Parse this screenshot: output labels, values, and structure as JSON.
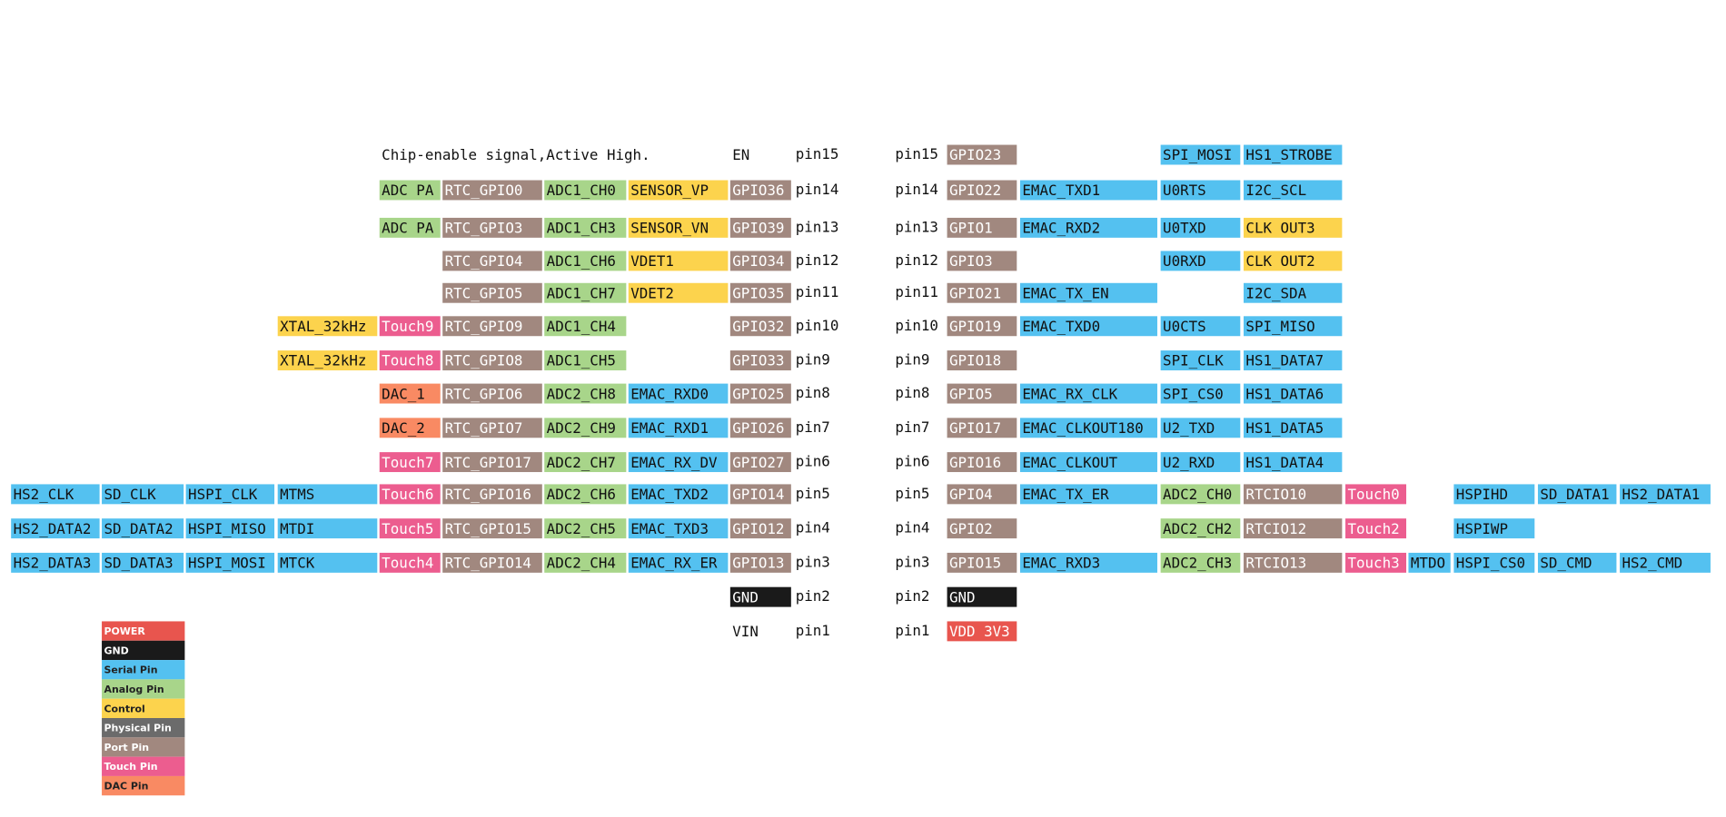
{
  "left": {
    "rows": [
      {
        "pin": "pin15",
        "cells": [
          null,
          null,
          null,
          null,
          {
            "text": "Chip-enable signal,Active High."
          },
          null,
          null,
          null,
          {
            "text": "EN"
          }
        ]
      },
      {
        "pin": "pin14",
        "cells": [
          null,
          null,
          null,
          null,
          {
            "text": "ADC PA",
            "color": "#a8d58a"
          },
          {
            "text": "RTC_GPIO0",
            "color": "#a1887f"
          },
          {
            "text": "ADC1_CH0",
            "color": "#a8d58a"
          },
          {
            "text": "SENSOR_VP",
            "color": "#fcd34d"
          },
          {
            "text": "GPIO36",
            "color": "#a1887f"
          }
        ]
      },
      {
        "pin": "pin13",
        "cells": [
          null,
          null,
          null,
          null,
          {
            "text": "ADC PA",
            "color": "#a8d58a"
          },
          {
            "text": "RTC_GPIO3",
            "color": "#a1887f"
          },
          {
            "text": "ADC1_CH3",
            "color": "#a8d58a"
          },
          {
            "text": "SENSOR_VN",
            "color": "#fcd34d"
          },
          {
            "text": "GPIO39",
            "color": "#a1887f"
          }
        ]
      },
      {
        "pin": "pin12",
        "cells": [
          null,
          null,
          null,
          null,
          null,
          {
            "text": "RTC_GPIO4",
            "color": "#a1887f"
          },
          {
            "text": "ADC1_CH6",
            "color": "#a8d58a"
          },
          {
            "text": "VDET1",
            "color": "#fcd34d"
          },
          {
            "text": "GPIO34",
            "color": "#a1887f"
          }
        ]
      },
      {
        "pin": "pin11",
        "cells": [
          null,
          null,
          null,
          null,
          null,
          {
            "text": "RTC_GPIO5",
            "color": "#a1887f"
          },
          {
            "text": "ADC1_CH7",
            "color": "#a8d58a"
          },
          {
            "text": "VDET2",
            "color": "#fcd34d"
          },
          {
            "text": "GPIO35",
            "color": "#a1887f"
          }
        ]
      },
      {
        "pin": "pin10",
        "cells": [
          null,
          null,
          null,
          {
            "text": "XTAL_32kHz",
            "color": "#fcd34d"
          },
          {
            "text": "Touch9",
            "color": "#ec5d8f"
          },
          {
            "text": "RTC_GPIO9",
            "color": "#a1887f"
          },
          {
            "text": "ADC1_CH4",
            "color": "#a8d58a"
          },
          null,
          {
            "text": "GPIO32",
            "color": "#a1887f"
          }
        ]
      },
      {
        "pin": "pin9",
        "cells": [
          null,
          null,
          null,
          {
            "text": "XTAL_32kHz",
            "color": "#fcd34d"
          },
          {
            "text": "Touch8",
            "color": "#ec5d8f"
          },
          {
            "text": "RTC_GPIO8",
            "color": "#a1887f"
          },
          {
            "text": "ADC1_CH5",
            "color": "#a8d58a"
          },
          null,
          {
            "text": "GPIO33",
            "color": "#a1887f"
          }
        ]
      },
      {
        "pin": "pin8",
        "cells": [
          null,
          null,
          null,
          null,
          {
            "text": "DAC_1",
            "color": "#f98a63"
          },
          {
            "text": "RTC_GPIO6",
            "color": "#a1887f"
          },
          {
            "text": "ADC2_CH8",
            "color": "#a8d58a"
          },
          {
            "text": "EMAC_RXD0",
            "color": "#54c1f0"
          },
          {
            "text": "GPIO25",
            "color": "#a1887f"
          }
        ]
      },
      {
        "pin": "pin7",
        "cells": [
          null,
          null,
          null,
          null,
          {
            "text": "DAC_2",
            "color": "#f98a63"
          },
          {
            "text": "RTC_GPIO7",
            "color": "#a1887f"
          },
          {
            "text": "ADC2_CH9",
            "color": "#a8d58a"
          },
          {
            "text": "EMAC_RXD1",
            "color": "#54c1f0"
          },
          {
            "text": "GPIO26",
            "color": "#a1887f"
          }
        ]
      },
      {
        "pin": "pin6",
        "cells": [
          null,
          null,
          null,
          null,
          {
            "text": "Touch7",
            "color": "#ec5d8f"
          },
          {
            "text": "RTC_GPIO17",
            "color": "#a1887f"
          },
          {
            "text": "ADC2_CH7",
            "color": "#a8d58a"
          },
          {
            "text": "EMAC_RX_DV",
            "color": "#54c1f0"
          },
          {
            "text": "GPIO27",
            "color": "#a1887f"
          }
        ]
      },
      {
        "pin": "pin5",
        "cells": [
          {
            "text": "HS2_CLK",
            "color": "#54c1f0"
          },
          {
            "text": "SD_CLK",
            "color": "#54c1f0"
          },
          {
            "text": "HSPI_CLK",
            "color": "#54c1f0"
          },
          {
            "text": "MTMS",
            "color": "#54c1f0"
          },
          {
            "text": "Touch6",
            "color": "#ec5d8f"
          },
          {
            "text": "RTC_GPIO16",
            "color": "#a1887f"
          },
          {
            "text": "ADC2_CH6",
            "color": "#a8d58a"
          },
          {
            "text": "EMAC_TXD2",
            "color": "#54c1f0"
          },
          {
            "text": "GPIO14",
            "color": "#a1887f"
          }
        ]
      },
      {
        "pin": "pin4",
        "cells": [
          {
            "text": "HS2_DATA2",
            "color": "#54c1f0"
          },
          {
            "text": "SD_DATA2",
            "color": "#54c1f0"
          },
          {
            "text": "HSPI_MISO",
            "color": "#54c1f0"
          },
          {
            "text": "MTDI",
            "color": "#54c1f0"
          },
          {
            "text": "Touch5",
            "color": "#ec5d8f"
          },
          {
            "text": "RTC_GPIO15",
            "color": "#a1887f"
          },
          {
            "text": "ADC2_CH5",
            "color": "#a8d58a"
          },
          {
            "text": "EMAC_TXD3",
            "color": "#54c1f0"
          },
          {
            "text": "GPIO12",
            "color": "#a1887f"
          }
        ]
      },
      {
        "pin": "pin3",
        "cells": [
          {
            "text": "HS2_DATA3",
            "color": "#54c1f0"
          },
          {
            "text": "SD_DATA3",
            "color": "#54c1f0"
          },
          {
            "text": "HSPI_MOSI",
            "color": "#54c1f0"
          },
          {
            "text": "MTCK",
            "color": "#54c1f0"
          },
          {
            "text": "Touch4",
            "color": "#ec5d8f"
          },
          {
            "text": "RTC_GPIO14",
            "color": "#a1887f"
          },
          {
            "text": "ADC2_CH4",
            "color": "#a8d58a"
          },
          {
            "text": "EMAC_RX_ER",
            "color": "#54c1f0"
          },
          {
            "text": "GPIO13",
            "color": "#a1887f"
          }
        ]
      },
      {
        "pin": "pin2",
        "cells": [
          null,
          null,
          null,
          null,
          null,
          null,
          null,
          null,
          {
            "text": "GND",
            "color": "#1a1a1a"
          }
        ]
      },
      {
        "pin": "pin1",
        "cells": [
          null,
          null,
          null,
          null,
          null,
          null,
          null,
          null,
          {
            "text": "VIN"
          }
        ]
      }
    ]
  },
  "right": {
    "rows": [
      {
        "pin": "pin15",
        "cells": [
          {
            "text": "GPIO23",
            "color": "#a1887f"
          },
          null,
          {
            "text": "SPI_MOSI",
            "color": "#54c1f0"
          },
          {
            "text": "HS1_STROBE",
            "color": "#54c1f0"
          }
        ]
      },
      {
        "pin": "pin14",
        "cells": [
          {
            "text": "GPIO22",
            "color": "#a1887f"
          },
          {
            "text": "EMAC_TXD1",
            "color": "#54c1f0"
          },
          {
            "text": "U0RTS",
            "color": "#54c1f0"
          },
          {
            "text": "I2C_SCL",
            "color": "#54c1f0"
          }
        ]
      },
      {
        "pin": "pin13",
        "cells": [
          {
            "text": "GPIO1",
            "color": "#a1887f"
          },
          {
            "text": "EMAC_RXD2",
            "color": "#54c1f0"
          },
          {
            "text": "U0TXD",
            "color": "#54c1f0"
          },
          {
            "text": "CLK OUT3",
            "color": "#fcd34d"
          }
        ]
      },
      {
        "pin": "pin12",
        "cells": [
          {
            "text": "GPIO3",
            "color": "#a1887f"
          },
          null,
          {
            "text": "U0RXD",
            "color": "#54c1f0"
          },
          {
            "text": "CLK OUT2",
            "color": "#fcd34d"
          }
        ]
      },
      {
        "pin": "pin11",
        "cells": [
          {
            "text": "GPIO21",
            "color": "#a1887f"
          },
          {
            "text": "EMAC_TX_EN",
            "color": "#54c1f0"
          },
          null,
          {
            "text": "I2C_SDA",
            "color": "#54c1f0"
          }
        ]
      },
      {
        "pin": "pin10",
        "cells": [
          {
            "text": "GPIO19",
            "color": "#a1887f"
          },
          {
            "text": "EMAC_TXD0",
            "color": "#54c1f0"
          },
          {
            "text": "U0CTS",
            "color": "#54c1f0"
          },
          {
            "text": "SPI_MISO",
            "color": "#54c1f0"
          }
        ]
      },
      {
        "pin": "pin9",
        "cells": [
          {
            "text": "GPIO18",
            "color": "#a1887f"
          },
          null,
          {
            "text": "SPI_CLK",
            "color": "#54c1f0"
          },
          {
            "text": "HS1_DATA7",
            "color": "#54c1f0"
          }
        ]
      },
      {
        "pin": "pin8",
        "cells": [
          {
            "text": "GPIO5",
            "color": "#a1887f"
          },
          {
            "text": "EMAC_RX_CLK",
            "color": "#54c1f0"
          },
          {
            "text": "SPI_CS0",
            "color": "#54c1f0"
          },
          {
            "text": "HS1_DATA6",
            "color": "#54c1f0"
          }
        ]
      },
      {
        "pin": "pin7",
        "cells": [
          {
            "text": "GPIO17",
            "color": "#a1887f"
          },
          {
            "text": "EMAC_CLKOUT180",
            "color": "#54c1f0"
          },
          {
            "text": "U2_TXD",
            "color": "#54c1f0"
          },
          {
            "text": "HS1_DATA5",
            "color": "#54c1f0"
          }
        ]
      },
      {
        "pin": "pin6",
        "cells": [
          {
            "text": "GPIO16",
            "color": "#a1887f"
          },
          {
            "text": "EMAC_CLKOUT",
            "color": "#54c1f0"
          },
          {
            "text": "U2_RXD",
            "color": "#54c1f0"
          },
          {
            "text": "HS1_DATA4",
            "color": "#54c1f0"
          }
        ]
      },
      {
        "pin": "pin5",
        "cells": [
          {
            "text": "GPIO4",
            "color": "#a1887f"
          },
          {
            "text": "EMAC_TX_ER",
            "color": "#54c1f0"
          },
          {
            "text": "ADC2_CH0",
            "color": "#a8d58a"
          },
          {
            "text": "RTCIO10",
            "color": "#a1887f"
          },
          {
            "text": "Touch0",
            "color": "#ec5d8f"
          },
          null,
          {
            "text": "HSPIHD",
            "color": "#54c1f0"
          },
          {
            "text": "SD_DATA1",
            "color": "#54c1f0"
          },
          {
            "text": "HS2_DATA1",
            "color": "#54c1f0"
          }
        ]
      },
      {
        "pin": "pin4",
        "cells": [
          {
            "text": "GPIO2",
            "color": "#a1887f"
          },
          null,
          {
            "text": "ADC2_CH2",
            "color": "#a8d58a"
          },
          {
            "text": "RTCIO12",
            "color": "#a1887f"
          },
          {
            "text": "Touch2",
            "color": "#ec5d8f"
          },
          null,
          {
            "text": "HSPIWP",
            "color": "#54c1f0"
          }
        ]
      },
      {
        "pin": "pin3",
        "cells": [
          {
            "text": "GPIO15",
            "color": "#a1887f"
          },
          {
            "text": "EMAC_RXD3",
            "color": "#54c1f0"
          },
          {
            "text": "ADC2_CH3",
            "color": "#a8d58a"
          },
          {
            "text": "RTCIO13",
            "color": "#a1887f"
          },
          {
            "text": "Touch3",
            "color": "#ec5d8f"
          },
          {
            "text": "MTDO",
            "color": "#54c1f0"
          },
          {
            "text": "HSPI_CS0",
            "color": "#54c1f0"
          },
          {
            "text": "SD_CMD",
            "color": "#54c1f0"
          },
          {
            "text": "HS2_CMD",
            "color": "#54c1f0"
          }
        ]
      },
      {
        "pin": "pin2",
        "cells": [
          {
            "text": "GND",
            "color": "#1a1a1a"
          }
        ]
      },
      {
        "pin": "pin1",
        "cells": [
          {
            "text": "VDD 3V3",
            "color": "#e8554e"
          }
        ]
      }
    ]
  },
  "legend": [
    {
      "label": "POWER",
      "color": "#e8554e"
    },
    {
      "label": "GND",
      "color": "#1a1a1a"
    },
    {
      "label": "Serial Pin",
      "color": "#54c1f0"
    },
    {
      "label": "Analog Pin",
      "color": "#a8d58a"
    },
    {
      "label": "Control",
      "color": "#fcd34d"
    },
    {
      "label": "Physical Pin",
      "color": "#6b6b6b"
    },
    {
      "label": "Port Pin",
      "color": "#a1887f"
    },
    {
      "label": "Touch Pin",
      "color": "#ec5d8f"
    },
    {
      "label": "DAC Pin",
      "color": "#f98a63"
    }
  ]
}
